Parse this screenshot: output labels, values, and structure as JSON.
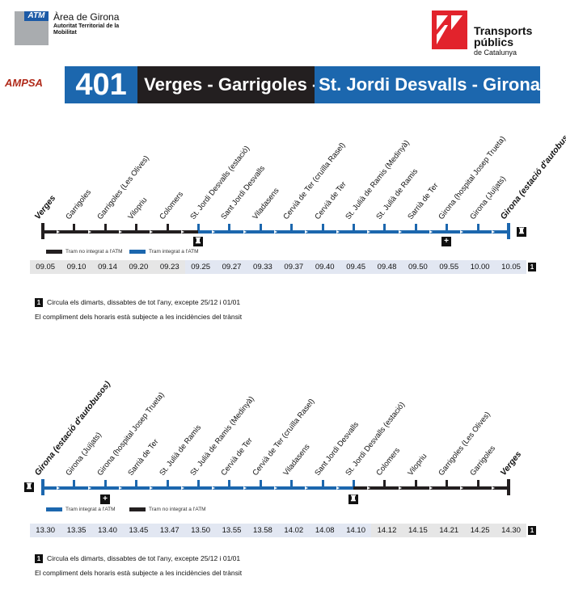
{
  "header": {
    "atm_tag": "ATM",
    "atm_title": "Àrea de Girona",
    "atm_subtitle": "Autoritat Territorial de la Mobilitat",
    "tp_name": "Transports públics",
    "tp_sub": "de Catalunya",
    "operator": "AMPSA"
  },
  "banner": {
    "line_number": "401",
    "route_black": "Verges - Garrigoles -",
    "route_blue": "St. Jordi Desvalls - Girona"
  },
  "colors": {
    "blue": "#1c67ae",
    "black": "#231f20",
    "gray_cell": "#e6e6e6",
    "blue_cell": "#e2e7f2"
  },
  "outbound": {
    "stops": [
      "Verges",
      "Garrigoles",
      "Garrigoles (Les Olives)",
      "Vilopriu",
      "Colomers",
      "St. Jordi Desvalls (estació)",
      "Sant Jordi Desvalls",
      "Viladasens",
      "Cervià de Ter (cruïlla Rasel)",
      "Cervià de Ter",
      "St. Julià de Ramis (Medinyà)",
      "St. Julià de Ramis",
      "Sarrià de Ter",
      "Girona (hospital Josep Trueta)",
      "Girona (Juïjats)",
      "Girona (estació d'autobusos)"
    ],
    "times": [
      "09.05",
      "09.10",
      "09.14",
      "09.20",
      "09.23",
      "09.25",
      "09.27",
      "09.33",
      "09.37",
      "09.40",
      "09.45",
      "09.48",
      "09.50",
      "09.55",
      "10.00",
      "10.05"
    ],
    "non_integrated_count": 5,
    "legend": [
      "Tram no integrat a l'ATM",
      "Tram integrat a l'ATM"
    ],
    "badge": "1"
  },
  "return": {
    "stops": [
      "Girona (estació d'autobusos)",
      "Girona (Juïjats)",
      "Girona (hospital Josep Trueta)",
      "Sarrià de Ter",
      "St. Julià de Ramis",
      "St. Julià de Ramis (Medinyà)",
      "Cervià de Ter",
      "Cervià de Ter (cruïlla Rasel)",
      "Viladasens",
      "Sant Jordi Desvalls",
      "St. Jordi Desvalls (estació)",
      "Colomers",
      "Vilopriu",
      "Garrigoles (Les Olives)",
      "Garrigoles",
      "Verges"
    ],
    "times": [
      "13.30",
      "13.35",
      "13.40",
      "13.45",
      "13.47",
      "13.50",
      "13.55",
      "13.58",
      "14.02",
      "14.08",
      "14.10",
      "14.12",
      "14.15",
      "14.21",
      "14.25",
      "14.30"
    ],
    "legend": [
      "Tram integrat a l'ATM",
      "Tram no integrat a l'ATM"
    ],
    "badge": "1"
  },
  "notes": {
    "badge": "1",
    "frequency": "Circula els dimarts, dissabtes de tot l'any, excepte 25/12 i 01/01",
    "disclaimer": "El compliment dels horaris està subjecte a les incidències del trànsit"
  },
  "icons": {
    "train": "train-icon",
    "hospital": "hospital-icon"
  }
}
